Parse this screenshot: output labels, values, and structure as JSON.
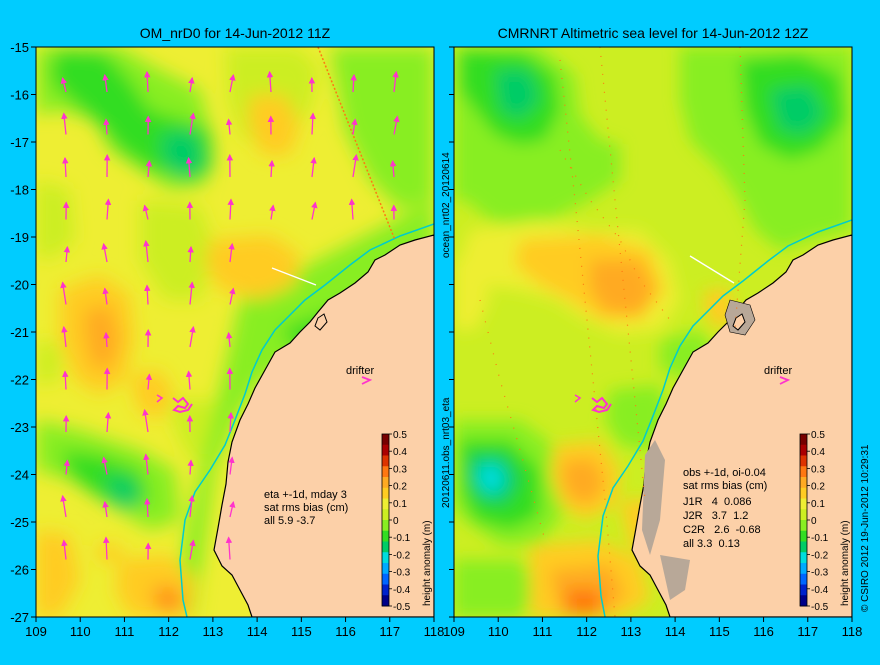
{
  "colors": {
    "background": "#00ccff",
    "land": "#fcd0a8",
    "coast": "#000000",
    "arrow": "#ff33cc",
    "contour_levels": [
      "#000088",
      "#0022cc",
      "#0066ff",
      "#00aaff",
      "#00dddd",
      "#00cc66",
      "#33dd22",
      "#88ee22",
      "#ccee22",
      "#eeee33",
      "#ffcc22",
      "#ffaa22",
      "#ff7711",
      "#dd3300",
      "#aa0000",
      "#770000"
    ]
  },
  "panels": [
    {
      "id": "left",
      "title": "OM_nrD0 for 14-Jun-2012 11Z",
      "stats_lines": [
        "eta +-1d, mday 3",
        "sat rms bias (cm)",
        "all 5.9 -3.7"
      ],
      "drifter_label": "drifter"
    },
    {
      "id": "right",
      "title": "CMRNRT Altimetric sea level  for 14-Jun-2012 12Z",
      "stats_lines": [
        "obs +-1d, oi-0.04",
        "sat rms bias (cm)",
        "J1R   4  0.086",
        "J2R   3.7  1.2",
        "C2R   2.6  -0.68",
        "all 3.3  0.13"
      ],
      "drifter_label": "drifter"
    }
  ],
  "axes": {
    "x_ticks": [
      "109",
      "110",
      "111",
      "112",
      "113",
      "114",
      "115",
      "116",
      "117",
      "118"
    ],
    "y_ticks": [
      "-15",
      "-16",
      "-17",
      "-18",
      "-19",
      "-20",
      "-21",
      "-22",
      "-23",
      "-24",
      "-25",
      "-26",
      "-27"
    ],
    "lon_range": [
      109,
      118
    ],
    "lat_range": [
      -27,
      -15
    ]
  },
  "colorbar": {
    "label": "height anomaly (m)",
    "ticks": [
      "0.5",
      "0.4",
      "0.3",
      "0.2",
      "0.1",
      "0",
      "-0.1",
      "-0.2",
      "-0.3",
      "-0.4",
      "-0.5"
    ],
    "range": [
      -0.5,
      0.5
    ]
  },
  "side_labels": {
    "center": "20120611.obs_nrt03_eta",
    "center_top": "ocean_nrt02_20120614",
    "right": "© CSIRO 2012   19-Jun-2012 10:29:31"
  }
}
